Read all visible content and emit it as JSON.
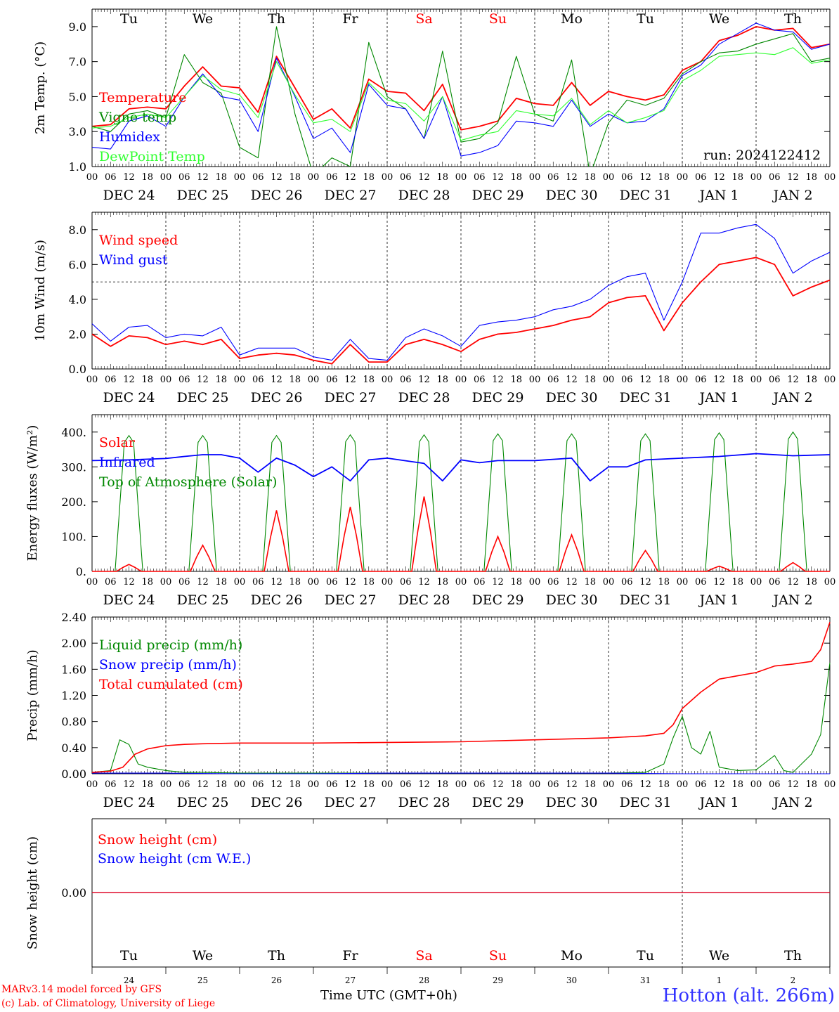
{
  "chart_data": [
    {
      "type": "line",
      "ylabel": "2m Temp. (°C)",
      "ylim": [
        1.0,
        10.0
      ],
      "yticks": [
        "1.0",
        "3.0",
        "5.0",
        "7.0",
        "9.0"
      ],
      "ytick_values": [
        1.0,
        3.0,
        5.0,
        7.0,
        9.0
      ],
      "top_day_labels": [
        "Tu",
        "We",
        "Th",
        "Fr",
        "Sa",
        "Su",
        "Mo",
        "Tu",
        "We",
        "Th"
      ],
      "date_labels": [
        "DEC 24",
        "DEC 25",
        "DEC 26",
        "DEC 27",
        "DEC 28",
        "DEC 29",
        "DEC 30",
        "DEC 31",
        "JAN  1",
        "JAN  2"
      ],
      "hour_labels": [
        "00",
        "06",
        "12",
        "18"
      ],
      "legend": [
        "Temperature",
        "Vigne temp",
        "Humidex",
        "DewPoint Temp"
      ],
      "annotation": "run: 2024122412",
      "series": [
        {
          "name": "Temperature",
          "color": "#ff0000",
          "x": [
            0,
            6,
            12,
            18,
            24,
            30,
            36,
            42,
            48,
            54,
            60,
            66,
            72,
            78,
            84,
            90,
            96,
            102,
            108,
            114,
            120,
            126,
            132,
            138,
            144,
            150,
            156,
            162,
            168,
            174,
            180,
            186,
            192,
            198,
            204,
            210,
            216,
            222,
            228,
            234,
            240
          ],
          "values": [
            3.3,
            3.4,
            4.3,
            4.4,
            4.3,
            5.6,
            6.7,
            5.6,
            5.5,
            4.1,
            7.3,
            5.5,
            3.7,
            4.3,
            3.2,
            6.0,
            5.3,
            5.2,
            4.2,
            5.7,
            3.1,
            3.3,
            3.6,
            4.9,
            4.6,
            4.5,
            5.8,
            4.5,
            5.3,
            5.0,
            4.8,
            5.1,
            6.5,
            7.0,
            8.2,
            8.5,
            9.0,
            8.8,
            8.9,
            7.8,
            8.0
          ]
        },
        {
          "name": "Vigne temp",
          "color": "#008800",
          "x": [
            0,
            6,
            12,
            18,
            24,
            30,
            36,
            42,
            48,
            54,
            60,
            66,
            72,
            78,
            84,
            90,
            96,
            102,
            108,
            114,
            120,
            126,
            132,
            138,
            144,
            150,
            156,
            162,
            168,
            174,
            180,
            186,
            192,
            198,
            204,
            210,
            216,
            222,
            228,
            234,
            240
          ],
          "values": [
            3.3,
            3.0,
            4.0,
            4.2,
            3.8,
            7.4,
            5.8,
            5.2,
            2.1,
            1.5,
            9.0,
            4.0,
            0.5,
            1.5,
            1.0,
            8.1,
            5.0,
            4.3,
            2.6,
            7.6,
            2.4,
            2.6,
            3.5,
            7.3,
            4.0,
            3.6,
            7.1,
            0.5,
            3.5,
            4.8,
            4.5,
            4.9,
            6.3,
            7.0,
            7.5,
            7.6,
            8.0,
            8.3,
            8.6,
            7.0,
            7.2
          ]
        },
        {
          "name": "Humidex",
          "color": "#0000ff",
          "x": [
            0,
            6,
            12,
            18,
            24,
            30,
            36,
            42,
            48,
            54,
            60,
            66,
            72,
            78,
            84,
            90,
            96,
            102,
            108,
            114,
            120,
            126,
            132,
            138,
            144,
            150,
            156,
            162,
            168,
            174,
            180,
            186,
            192,
            198,
            204,
            210,
            216,
            222,
            228,
            234,
            240
          ],
          "values": [
            2.1,
            2.0,
            3.6,
            3.9,
            3.3,
            5.0,
            6.3,
            5.0,
            4.8,
            3.0,
            7.2,
            5.0,
            2.6,
            3.2,
            1.8,
            5.7,
            4.5,
            4.3,
            2.6,
            5.0,
            1.6,
            1.8,
            2.2,
            3.6,
            3.5,
            3.3,
            4.8,
            3.3,
            4.0,
            3.5,
            3.6,
            4.3,
            6.2,
            6.8,
            8.0,
            8.6,
            9.2,
            8.8,
            8.7,
            7.7,
            8.0
          ]
        },
        {
          "name": "DewPoint Temp",
          "color": "#33ff33",
          "x": [
            0,
            6,
            12,
            18,
            24,
            30,
            36,
            42,
            48,
            54,
            60,
            66,
            72,
            78,
            84,
            90,
            96,
            102,
            108,
            114,
            120,
            126,
            132,
            138,
            144,
            150,
            156,
            162,
            168,
            174,
            180,
            186,
            192,
            198,
            204,
            210,
            216,
            222,
            228,
            234,
            240
          ],
          "values": [
            3.2,
            3.3,
            3.8,
            4.0,
            3.8,
            5.0,
            6.2,
            5.4,
            5.1,
            3.8,
            7.0,
            5.1,
            3.5,
            3.7,
            3.0,
            5.8,
            4.8,
            4.6,
            3.6,
            5.0,
            2.5,
            2.8,
            3.0,
            4.2,
            4.0,
            3.9,
            4.9,
            3.4,
            4.2,
            3.5,
            3.8,
            4.2,
            5.9,
            6.5,
            7.3,
            7.4,
            7.5,
            7.4,
            7.8,
            6.9,
            7.1
          ]
        }
      ]
    },
    {
      "type": "line",
      "ylabel": "10m Wind (m/s)",
      "ylim": [
        0.0,
        9.0
      ],
      "yticks": [
        "0.0",
        "2.0",
        "4.0",
        "6.0",
        "8.0"
      ],
      "ytick_values": [
        0.0,
        2.0,
        4.0,
        6.0,
        8.0
      ],
      "reference_line": 5.0,
      "date_labels": [
        "DEC 24",
        "DEC 25",
        "DEC 26",
        "DEC 27",
        "DEC 28",
        "DEC 29",
        "DEC 30",
        "DEC 31",
        "JAN  1",
        "JAN  2"
      ],
      "hour_labels": [
        "00",
        "06",
        "12",
        "18"
      ],
      "legend": [
        "Wind speed",
        "Wind gust"
      ],
      "series": [
        {
          "name": "Wind speed",
          "color": "#ff0000",
          "x": [
            0,
            6,
            12,
            18,
            24,
            30,
            36,
            42,
            48,
            54,
            60,
            66,
            72,
            78,
            84,
            90,
            96,
            102,
            108,
            114,
            120,
            126,
            132,
            138,
            144,
            150,
            156,
            162,
            168,
            174,
            180,
            186,
            192,
            198,
            204,
            210,
            216,
            222,
            228,
            234,
            240
          ],
          "values": [
            2.0,
            1.3,
            1.9,
            1.8,
            1.4,
            1.6,
            1.4,
            1.7,
            0.6,
            0.8,
            0.9,
            0.8,
            0.5,
            0.3,
            1.4,
            0.4,
            0.4,
            1.4,
            1.7,
            1.4,
            1.0,
            1.7,
            2.0,
            2.1,
            2.3,
            2.5,
            2.8,
            3.0,
            3.8,
            4.1,
            4.2,
            2.2,
            3.8,
            5.0,
            6.0,
            6.2,
            6.4,
            6.0,
            4.2,
            4.7,
            5.1
          ]
        },
        {
          "name": "Wind gust",
          "color": "#0000ff",
          "x": [
            0,
            6,
            12,
            18,
            24,
            30,
            36,
            42,
            48,
            54,
            60,
            66,
            72,
            78,
            84,
            90,
            96,
            102,
            108,
            114,
            120,
            126,
            132,
            138,
            144,
            150,
            156,
            162,
            168,
            174,
            180,
            186,
            192,
            198,
            204,
            210,
            216,
            222,
            228,
            234,
            240
          ],
          "values": [
            2.6,
            1.6,
            2.4,
            2.5,
            1.8,
            2.0,
            1.9,
            2.4,
            0.8,
            1.2,
            1.2,
            1.2,
            0.7,
            0.5,
            1.7,
            0.6,
            0.5,
            1.8,
            2.3,
            1.9,
            1.3,
            2.5,
            2.7,
            2.8,
            3.0,
            3.4,
            3.6,
            4.0,
            4.8,
            5.3,
            5.5,
            2.8,
            5.0,
            7.8,
            7.8,
            8.1,
            8.3,
            7.5,
            5.5,
            6.2,
            6.7
          ]
        }
      ]
    },
    {
      "type": "line",
      "ylabel": "Energy fluxes (W/m²)",
      "ylim": [
        0,
        450
      ],
      "yticks": [
        "0.",
        "100.",
        "200.",
        "300.",
        "400."
      ],
      "ytick_values": [
        0,
        100,
        200,
        300,
        400
      ],
      "date_labels": [
        "DEC 24",
        "DEC 25",
        "DEC 26",
        "DEC 27",
        "DEC 28",
        "DEC 29",
        "DEC 30",
        "DEC 31",
        "JAN  1",
        "JAN  2"
      ],
      "hour_labels": [
        "00",
        "06",
        "12",
        "18"
      ],
      "legend": [
        "Solar",
        "Infrared",
        "Top of Atmosphere (Solar)"
      ],
      "daily_peaks": {
        "solar": [
          20,
          75,
          175,
          185,
          215,
          100,
          105,
          60,
          15,
          25
        ],
        "toa": [
          390,
          390,
          390,
          392,
          392,
          395,
          395,
          395,
          398,
          400
        ]
      },
      "series": [
        {
          "name": "Infrared",
          "color": "#0000ff",
          "x": [
            0,
            12,
            24,
            30,
            36,
            42,
            48,
            54,
            60,
            66,
            72,
            78,
            84,
            90,
            96,
            108,
            114,
            120,
            126,
            132,
            144,
            156,
            162,
            168,
            174,
            180,
            192,
            204,
            216,
            228,
            240
          ],
          "values": [
            318,
            320,
            324,
            330,
            335,
            335,
            325,
            285,
            325,
            305,
            272,
            300,
            260,
            320,
            325,
            310,
            260,
            320,
            312,
            318,
            318,
            325,
            260,
            300,
            300,
            320,
            325,
            330,
            338,
            332,
            335
          ]
        }
      ]
    },
    {
      "type": "line",
      "ylabel": "Precip (mm/h)",
      "ylim": [
        0.0,
        2.4
      ],
      "yticks": [
        "0.00",
        "0.40",
        "0.80",
        "1.20",
        "1.60",
        "2.00",
        "2.40"
      ],
      "ytick_values": [
        0.0,
        0.4,
        0.8,
        1.2,
        1.6,
        2.0,
        2.4
      ],
      "date_labels": [
        "DEC 24",
        "DEC 25",
        "DEC 26",
        "DEC 27",
        "DEC 28",
        "DEC 29",
        "DEC 30",
        "DEC 31",
        "JAN  1",
        "JAN  2"
      ],
      "hour_labels": [
        "00",
        "06",
        "12",
        "18"
      ],
      "legend": [
        "Liquid precip (mm/h)",
        "Snow precip (mm/h)",
        "Total cumulated (cm)"
      ],
      "series": [
        {
          "name": "Liquid precip (mm/h)",
          "color": "#008800",
          "x": [
            0,
            6,
            9,
            12,
            15,
            18,
            24,
            30,
            36,
            48,
            72,
            96,
            120,
            144,
            168,
            180,
            186,
            189,
            192,
            195,
            198,
            201,
            204,
            210,
            216,
            222,
            225,
            228,
            234,
            237,
            240
          ],
          "values": [
            0.02,
            0.05,
            0.52,
            0.45,
            0.15,
            0.1,
            0.05,
            0.02,
            0.02,
            0.01,
            0.01,
            0.01,
            0.01,
            0.01,
            0.01,
            0.02,
            0.15,
            0.55,
            0.88,
            0.4,
            0.3,
            0.65,
            0.1,
            0.05,
            0.06,
            0.28,
            0.05,
            0.02,
            0.3,
            0.6,
            1.7
          ]
        },
        {
          "name": "Snow precip (mm/h)",
          "color": "#0000ff",
          "x": [
            0,
            24,
            48,
            72,
            96,
            120,
            144,
            168,
            192,
            216,
            240
          ],
          "values": [
            0.01,
            0.01,
            0.0,
            0.0,
            0.01,
            0.01,
            0.01,
            0.01,
            0.0,
            0.0,
            0.0
          ]
        },
        {
          "name": "Total cumulated (cm)",
          "color": "#ff0000",
          "x": [
            0,
            6,
            10,
            14,
            18,
            24,
            30,
            36,
            48,
            72,
            96,
            120,
            144,
            168,
            180,
            186,
            189,
            192,
            198,
            204,
            210,
            216,
            222,
            228,
            234,
            237,
            240
          ],
          "values": [
            0.02,
            0.04,
            0.1,
            0.3,
            0.38,
            0.43,
            0.45,
            0.46,
            0.47,
            0.47,
            0.48,
            0.49,
            0.52,
            0.55,
            0.58,
            0.62,
            0.75,
            1.0,
            1.25,
            1.45,
            1.5,
            1.55,
            1.65,
            1.68,
            1.72,
            1.9,
            2.32
          ]
        }
      ]
    },
    {
      "type": "line",
      "ylabel": "Snow height (cm)",
      "yticks": [
        "0.00"
      ],
      "legend": [
        "Snow height (cm)",
        "Snow height (cm W.E.)"
      ],
      "bottom_day_labels": [
        "Tu",
        "We",
        "Th",
        "Fr",
        "Sa",
        "Su",
        "Mo",
        "Tu",
        "We",
        "Th"
      ],
      "bottom_day_numbers": [
        "24",
        "25",
        "26",
        "27",
        "28",
        "29",
        "30",
        "31",
        "1",
        "2"
      ],
      "series": [
        {
          "name": "Snow height (cm)",
          "color": "#ff0000",
          "values": [
            0.0,
            0.0
          ]
        },
        {
          "name": "Snow height (cm W.E.)",
          "color": "#0000ff",
          "values": [
            0.0,
            0.0
          ]
        }
      ]
    }
  ],
  "footer": {
    "model_line": "MARv3.14 model forced by GFS",
    "lab_line": "(c) Lab. of Climatology, University of Liege",
    "time_label": "Time UTC (GMT+0h)",
    "station": "Hotton (alt. 266m)"
  },
  "weekend_color": "#ff0000",
  "weekend_indices": [
    4,
    5
  ]
}
